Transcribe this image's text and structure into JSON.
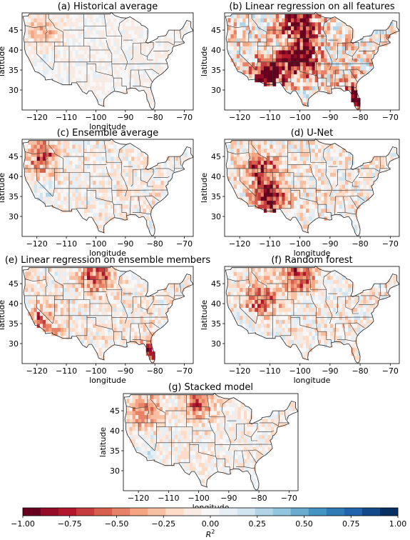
{
  "panels": [
    {
      "title": "(a) Historical average",
      "xlabel": "longitude",
      "ylabel": "latitude",
      "xticks": [
        "−120",
        "−110",
        "−100",
        "−90",
        "−80",
        "−70"
      ],
      "yticks": [
        "45",
        "40",
        "35",
        "30"
      ],
      "intensity": 0.25,
      "hotspots": [
        "northwest"
      ]
    },
    {
      "title": "(b) Linear regression on all features",
      "xlabel": "",
      "ylabel": "latitude",
      "xticks": [
        "−120",
        "−110",
        "−100",
        "−90",
        "−80",
        "−70"
      ],
      "yticks": [
        "45",
        "40",
        "35",
        "30"
      ],
      "intensity": 0.9,
      "hotspots": [
        "southwest",
        "plains",
        "northern-plains",
        "florida"
      ]
    },
    {
      "title": "(c) Ensemble average",
      "xlabel": "longitude",
      "ylabel": "latitude",
      "xticks": [
        "−120",
        "−110",
        "−100",
        "−90",
        "−80",
        "−70"
      ],
      "yticks": [
        "45",
        "40",
        "35",
        "30"
      ],
      "intensity": 0.45,
      "hotspots": [
        "northwest"
      ]
    },
    {
      "title": "(d) U-Net",
      "xlabel": "longitude",
      "ylabel": "latitude",
      "xticks": [
        "−120",
        "−110",
        "−100",
        "−90",
        "−80",
        "−70"
      ],
      "yticks": [
        "45",
        "40",
        "35",
        "30"
      ],
      "intensity": 0.6,
      "hotspots": [
        "southwest",
        "west"
      ]
    },
    {
      "title": "(e) Linear regression on ensemble members",
      "xlabel": "longitude",
      "ylabel": "latitude",
      "xticks": [
        "−120",
        "−110",
        "−100",
        "−90",
        "−80",
        "−70"
      ],
      "yticks": [
        "45",
        "40",
        "35",
        "30"
      ],
      "intensity": 0.5,
      "hotspots": [
        "northern-plains",
        "california",
        "florida"
      ]
    },
    {
      "title": "(f) Random forest",
      "xlabel": "longitude",
      "ylabel": "latitude",
      "xticks": [
        "−120",
        "−110",
        "−100",
        "−90",
        "−80",
        "−70"
      ],
      "yticks": [
        "45",
        "40",
        "35",
        "30"
      ],
      "intensity": 0.5,
      "hotspots": [
        "west",
        "northern-plains"
      ]
    },
    {
      "title": "(g) Stacked model",
      "xlabel": "longitude",
      "ylabel": "latitude",
      "xticks": [
        "−120",
        "−110",
        "−100",
        "−90",
        "−80",
        "−70"
      ],
      "yticks": [
        "45",
        "40",
        "35",
        "30"
      ],
      "intensity": 0.4,
      "hotspots": [
        "northern-plains",
        "northwest"
      ]
    }
  ],
  "colorbar": {
    "label": "R",
    "label_sup": "2",
    "ticks": [
      "−1.00",
      "−0.75",
      "−0.50",
      "−0.25",
      "0.00",
      "0.25",
      "0.50",
      "0.75",
      "1.00"
    ],
    "colors": [
      "#67001f",
      "#940c27",
      "#b2182b",
      "#c53e3d",
      "#d6604d",
      "#e58267",
      "#f4a582",
      "#f8c0a3",
      "#fddbc7",
      "#f8ebe4",
      "#f7f7f7",
      "#e5eff5",
      "#d1e5f0",
      "#b1d5e7",
      "#92c5de",
      "#6aacd0",
      "#4393c3",
      "#2f7bb5",
      "#2166ac",
      "#134b88",
      "#053061"
    ]
  }
}
